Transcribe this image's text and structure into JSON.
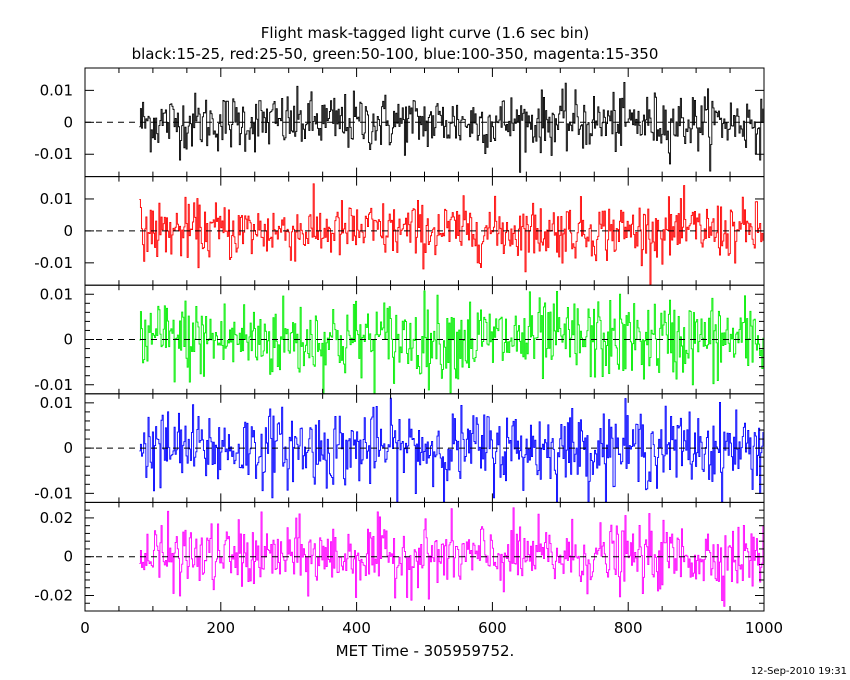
{
  "chart_data": {
    "type": "line",
    "title": "Flight mask-tagged light curve (1.6 sec bin)",
    "subtitle": "black:15-25, red:25-50, green:50-100, blue:100-350, magenta:15-350",
    "xlabel": "MET Time - 305959752.",
    "xlim": [
      0,
      1000
    ],
    "x_ticks": [
      "0",
      "200",
      "400",
      "600",
      "800",
      "1000"
    ],
    "x_tick_values": [
      0,
      200,
      400,
      600,
      800,
      1000
    ],
    "x_start": 80,
    "bin_size": 1.6,
    "grid": false,
    "legend": "none",
    "panels": [
      {
        "color": "#000000",
        "band": "15-25",
        "ylim": [
          -0.017,
          0.017
        ],
        "amplitude": 0.0045,
        "y_ticks": [
          "0.01",
          "0",
          "-0.01"
        ],
        "y_tick_values": [
          0.01,
          0,
          -0.01
        ]
      },
      {
        "color": "#ff0000",
        "band": "25-50",
        "ylim": [
          -0.017,
          0.017
        ],
        "amplitude": 0.0045,
        "y_ticks": [
          "0.01",
          "0",
          "-0.01"
        ],
        "y_tick_values": [
          0.01,
          0,
          -0.01
        ]
      },
      {
        "color": "#00ee00",
        "band": "50-100",
        "ylim": [
          -0.012,
          0.012
        ],
        "amplitude": 0.0045,
        "y_ticks": [
          "0.01",
          "0",
          "-0.01"
        ],
        "y_tick_values": [
          0.01,
          0,
          -0.01
        ]
      },
      {
        "color": "#0000ff",
        "band": "100-350",
        "ylim": [
          -0.012,
          0.012
        ],
        "amplitude": 0.0042,
        "y_ticks": [
          "0.01",
          "0",
          "-0.01"
        ],
        "y_tick_values": [
          0.01,
          0,
          -0.01
        ]
      },
      {
        "color": "#ff00ff",
        "band": "15-350",
        "ylim": [
          -0.028,
          0.028
        ],
        "amplitude": 0.0085,
        "y_ticks": [
          "0.02",
          "0",
          "-0.02"
        ],
        "y_tick_values": [
          0.02,
          0,
          -0.02
        ]
      }
    ]
  },
  "footer": {
    "timestamp": "12-Sep-2010 19:31"
  }
}
